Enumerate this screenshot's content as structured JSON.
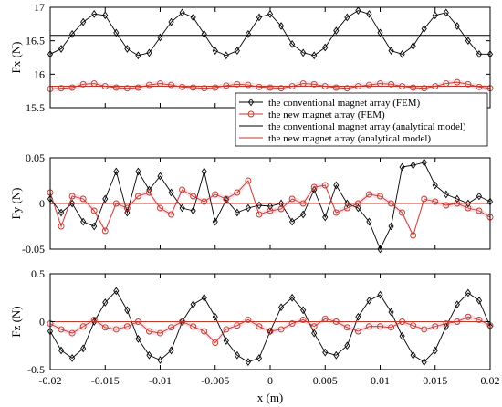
{
  "chart_data": [
    {
      "type": "line",
      "ylabel": "Fx (N)",
      "xlabel": "",
      "xlim": [
        -0.02,
        0.02
      ],
      "ylim": [
        15.5,
        17
      ],
      "yticks": [
        "15.5",
        "16",
        "16.5",
        "17"
      ],
      "grid": false,
      "legend_position": "bottom-right",
      "series": [
        {
          "name": "the conventional magnet array (FEM)",
          "color": "#000000",
          "marker": "diamond",
          "x": [
            -0.02,
            -0.019,
            -0.018,
            -0.017,
            -0.016,
            -0.015,
            -0.014,
            -0.013,
            -0.012,
            -0.011,
            -0.01,
            -0.009,
            -0.008,
            -0.007,
            -0.006,
            -0.005,
            -0.004,
            -0.003,
            -0.002,
            -0.001,
            0,
            0.001,
            0.002,
            0.003,
            0.004,
            0.005,
            0.006,
            0.007,
            0.008,
            0.009,
            0.01,
            0.011,
            0.012,
            0.013,
            0.014,
            0.015,
            0.016,
            0.017,
            0.018,
            0.019,
            0.02
          ],
          "values": [
            16.3,
            16.38,
            16.6,
            16.78,
            16.9,
            16.88,
            16.62,
            16.38,
            16.28,
            16.32,
            16.55,
            16.78,
            16.92,
            16.85,
            16.6,
            16.35,
            16.28,
            16.35,
            16.6,
            16.85,
            16.9,
            16.72,
            16.45,
            16.32,
            16.28,
            16.4,
            16.65,
            16.85,
            16.95,
            16.9,
            16.62,
            16.35,
            16.3,
            16.42,
            16.68,
            16.88,
            16.92,
            16.72,
            16.5,
            16.3,
            16.3
          ]
        },
        {
          "name": "the new magnet array (FEM)",
          "color": "#c0392b",
          "marker": "circle",
          "x": [
            -0.02,
            -0.019,
            -0.018,
            -0.017,
            -0.016,
            -0.015,
            -0.014,
            -0.013,
            -0.012,
            -0.011,
            -0.01,
            -0.009,
            -0.008,
            -0.007,
            -0.006,
            -0.005,
            -0.004,
            -0.003,
            -0.002,
            -0.001,
            0,
            0.001,
            0.002,
            0.003,
            0.004,
            0.005,
            0.006,
            0.007,
            0.008,
            0.009,
            0.01,
            0.011,
            0.012,
            0.013,
            0.014,
            0.015,
            0.016,
            0.017,
            0.018,
            0.019,
            0.02
          ],
          "values": [
            15.78,
            15.79,
            15.8,
            15.85,
            15.86,
            15.82,
            15.8,
            15.79,
            15.8,
            15.84,
            15.86,
            15.84,
            15.81,
            15.8,
            15.79,
            15.8,
            15.83,
            15.85,
            15.84,
            15.81,
            15.8,
            15.79,
            15.82,
            15.86,
            15.85,
            15.82,
            15.8,
            15.79,
            15.82,
            15.84,
            15.86,
            15.85,
            15.82,
            15.8,
            15.79,
            15.82,
            15.86,
            15.88,
            15.85,
            15.81,
            15.79
          ]
        },
        {
          "name": "the conventional magnet array (analytical model)",
          "color": "#000000",
          "marker": "none",
          "x": [
            -0.02,
            0.02
          ],
          "values": [
            16.58,
            16.58
          ]
        },
        {
          "name": "the new magnet array (analytical model)",
          "color": "#c0392b",
          "marker": "none",
          "x": [
            -0.02,
            0.02
          ],
          "values": [
            15.82,
            15.82
          ]
        }
      ]
    },
    {
      "type": "line",
      "ylabel": "Fy (N)",
      "xlabel": "",
      "xlim": [
        -0.02,
        0.02
      ],
      "ylim": [
        -0.05,
        0.05
      ],
      "yticks": [
        "-0.05",
        "0",
        "0.05"
      ],
      "grid": false,
      "series": [
        {
          "name": "the conventional magnet array (FEM)",
          "color": "#000000",
          "marker": "diamond",
          "x": [
            -0.02,
            -0.019,
            -0.018,
            -0.017,
            -0.016,
            -0.015,
            -0.014,
            -0.013,
            -0.012,
            -0.011,
            -0.01,
            -0.009,
            -0.008,
            -0.007,
            -0.006,
            -0.005,
            -0.004,
            -0.003,
            -0.002,
            -0.001,
            0,
            0.001,
            0.002,
            0.003,
            0.004,
            0.005,
            0.006,
            0.007,
            0.008,
            0.009,
            0.01,
            0.011,
            0.012,
            0.013,
            0.014,
            0.015,
            0.016,
            0.017,
            0.018,
            0.019,
            0.02
          ],
          "values": [
            0.005,
            -0.01,
            0.0,
            -0.02,
            -0.025,
            0.005,
            0.035,
            -0.01,
            0.035,
            0.015,
            0.03,
            0.012,
            -0.005,
            -0.008,
            0.035,
            -0.02,
            0.004,
            -0.01,
            -0.005,
            -0.002,
            -0.003,
            0.0,
            -0.02,
            -0.012,
            0.015,
            -0.015,
            0.02,
            0.0,
            -0.005,
            -0.02,
            -0.05,
            -0.025,
            0.04,
            0.042,
            0.045,
            0.02,
            0.01,
            0.005,
            0.0,
            0.008,
            0.002
          ]
        },
        {
          "name": "the new magnet array (FEM)",
          "color": "#c0392b",
          "marker": "circle",
          "x": [
            -0.02,
            -0.019,
            -0.018,
            -0.017,
            -0.016,
            -0.015,
            -0.014,
            -0.013,
            -0.012,
            -0.011,
            -0.01,
            -0.009,
            -0.008,
            -0.007,
            -0.006,
            -0.005,
            -0.004,
            -0.003,
            -0.002,
            -0.001,
            0,
            0.001,
            0.002,
            0.003,
            0.004,
            0.005,
            0.006,
            0.007,
            0.008,
            0.009,
            0.01,
            0.011,
            0.012,
            0.013,
            0.014,
            0.015,
            0.016,
            0.017,
            0.018,
            0.019,
            0.02
          ],
          "values": [
            0.012,
            -0.025,
            0.008,
            0.005,
            -0.008,
            -0.03,
            0.0,
            -0.005,
            0.008,
            0.012,
            -0.005,
            -0.012,
            0.015,
            0.008,
            0.002,
            0.01,
            0.005,
            0.012,
            0.025,
            -0.012,
            -0.008,
            -0.006,
            0.005,
            0.0,
            0.018,
            0.02,
            -0.01,
            -0.005,
            0.0,
            0.01,
            0.008,
            0.0,
            -0.01,
            -0.035,
            0.005,
            0.002,
            -0.002,
            0.0,
            -0.005,
            -0.008,
            -0.015
          ]
        },
        {
          "name": "the conventional magnet array (analytical model)",
          "color": "#000000",
          "marker": "none",
          "x": [
            -0.02,
            0.02
          ],
          "values": [
            0,
            0
          ]
        },
        {
          "name": "the new magnet array (analytical model)",
          "color": "#c0392b",
          "marker": "none",
          "x": [
            -0.02,
            0.02
          ],
          "values": [
            0,
            0
          ]
        }
      ]
    },
    {
      "type": "line",
      "ylabel": "Fz (N)",
      "xlabel": "x (m)",
      "xlim": [
        -0.02,
        0.02
      ],
      "ylim": [
        -0.5,
        0.5
      ],
      "yticks": [
        "-0.5",
        "0",
        "0.5"
      ],
      "xticks": [
        "-0.02",
        "-0.015",
        "-0.01",
        "-0.005",
        "0",
        "0.005",
        "0.01",
        "0.015",
        "0.02"
      ],
      "grid": false,
      "series": [
        {
          "name": "the conventional magnet array (FEM)",
          "color": "#000000",
          "marker": "diamond",
          "x": [
            -0.02,
            -0.019,
            -0.018,
            -0.017,
            -0.016,
            -0.015,
            -0.014,
            -0.013,
            -0.012,
            -0.011,
            -0.01,
            -0.009,
            -0.008,
            -0.007,
            -0.006,
            -0.005,
            -0.004,
            -0.003,
            -0.002,
            -0.001,
            0,
            0.001,
            0.002,
            0.003,
            0.004,
            0.005,
            0.006,
            0.007,
            0.008,
            0.009,
            0.01,
            0.011,
            0.012,
            0.013,
            0.014,
            0.015,
            0.016,
            0.017,
            0.018,
            0.019,
            0.02
          ],
          "values": [
            -0.1,
            -0.3,
            -0.38,
            -0.28,
            0.0,
            0.2,
            0.32,
            0.12,
            -0.18,
            -0.35,
            -0.4,
            -0.3,
            0.0,
            0.18,
            0.25,
            0.05,
            -0.2,
            -0.35,
            -0.42,
            -0.38,
            -0.1,
            0.15,
            0.25,
            0.12,
            -0.12,
            -0.32,
            -0.35,
            -0.25,
            0.05,
            0.22,
            0.28,
            0.1,
            -0.15,
            -0.35,
            -0.42,
            -0.3,
            -0.05,
            0.18,
            0.3,
            0.22,
            -0.05
          ]
        },
        {
          "name": "the new magnet array (FEM)",
          "color": "#c0392b",
          "marker": "circle",
          "x": [
            -0.02,
            -0.019,
            -0.018,
            -0.017,
            -0.016,
            -0.015,
            -0.014,
            -0.013,
            -0.012,
            -0.011,
            -0.01,
            -0.009,
            -0.008,
            -0.007,
            -0.006,
            -0.005,
            -0.004,
            -0.003,
            -0.002,
            -0.001,
            0,
            0.001,
            0.002,
            0.003,
            0.004,
            0.005,
            0.006,
            0.007,
            0.008,
            0.009,
            0.01,
            0.011,
            0.012,
            0.013,
            0.014,
            0.015,
            0.016,
            0.017,
            0.018,
            0.019,
            0.02
          ],
          "values": [
            -0.02,
            -0.08,
            -0.12,
            -0.05,
            0.02,
            -0.06,
            -0.08,
            -0.05,
            0.0,
            -0.1,
            -0.12,
            -0.06,
            0.0,
            -0.05,
            -0.1,
            -0.22,
            -0.08,
            -0.04,
            0.02,
            -0.05,
            -0.1,
            -0.08,
            -0.02,
            0.02,
            -0.05,
            0.03,
            0.0,
            -0.06,
            -0.1,
            -0.05,
            -0.05,
            -0.06,
            0.0,
            -0.04,
            -0.08,
            -0.05,
            -0.02,
            0.0,
            0.05,
            0.02,
            -0.04
          ]
        },
        {
          "name": "the conventional magnet array (analytical model)",
          "color": "#000000",
          "marker": "none",
          "x": [
            -0.02,
            0.02
          ],
          "values": [
            0,
            0
          ]
        },
        {
          "name": "the new magnet array (analytical model)",
          "color": "#c0392b",
          "marker": "none",
          "x": [
            -0.02,
            0.02
          ],
          "values": [
            0,
            0
          ]
        }
      ]
    }
  ]
}
